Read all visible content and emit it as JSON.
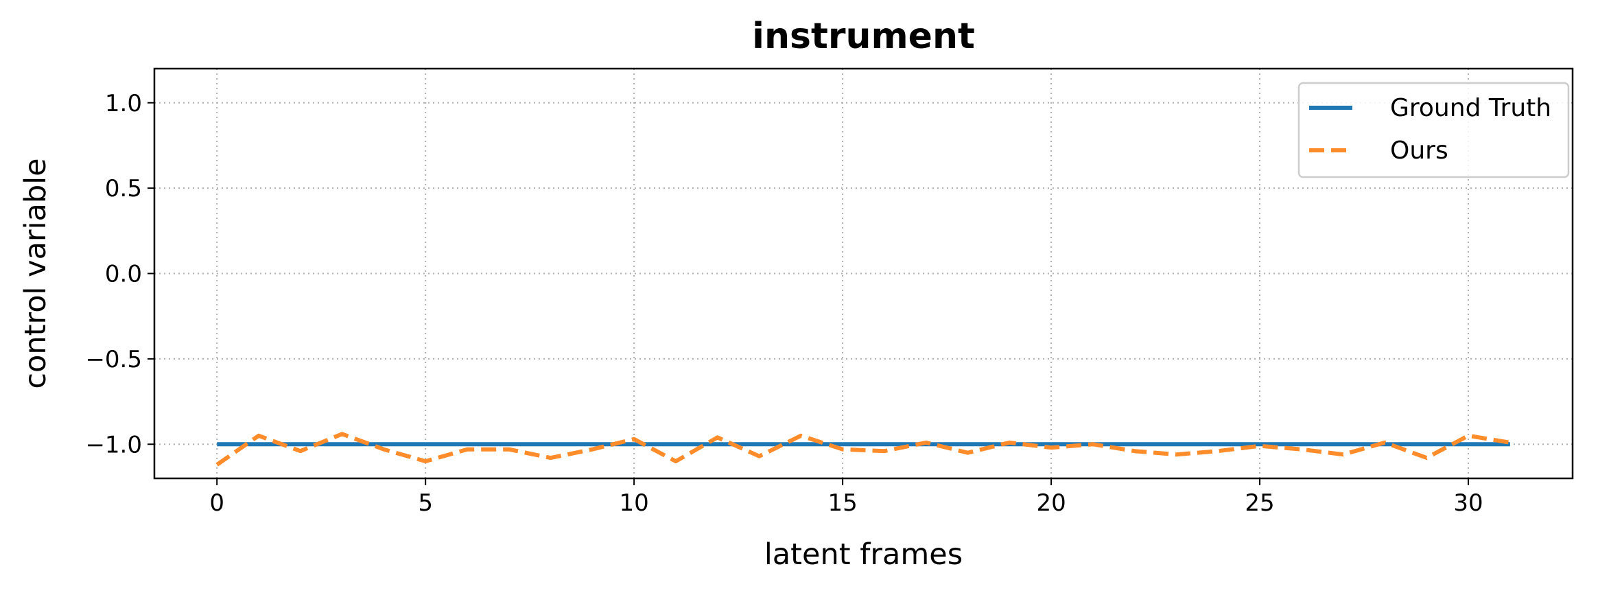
{
  "chart_data": {
    "type": "line",
    "title": "instrument",
    "xlabel": "latent frames",
    "ylabel": "control variable",
    "xlim": [
      -1.5,
      32.5
    ],
    "ylim": [
      -1.2,
      1.2
    ],
    "xticks": [
      0,
      5,
      10,
      15,
      20,
      25,
      30
    ],
    "yticks": [
      1.0,
      0.5,
      0.0,
      -0.5,
      -1.0
    ],
    "xtick_labels": [
      "0",
      "5",
      "10",
      "15",
      "20",
      "25",
      "30"
    ],
    "ytick_labels": [
      "1.0",
      "0.5",
      "0.0",
      "−0.5",
      "−1.0"
    ],
    "grid": true,
    "legend_position": "top-right",
    "series": [
      {
        "name": "Ground Truth",
        "color": "#1f77b4",
        "style": "solid",
        "x": [
          0,
          1,
          2,
          3,
          4,
          5,
          6,
          7,
          8,
          9,
          10,
          11,
          12,
          13,
          14,
          15,
          16,
          17,
          18,
          19,
          20,
          21,
          22,
          23,
          24,
          25,
          26,
          27,
          28,
          29,
          30,
          31
        ],
        "values": [
          -1.0,
          -1.0,
          -1.0,
          -1.0,
          -1.0,
          -1.0,
          -1.0,
          -1.0,
          -1.0,
          -1.0,
          -1.0,
          -1.0,
          -1.0,
          -1.0,
          -1.0,
          -1.0,
          -1.0,
          -1.0,
          -1.0,
          -1.0,
          -1.0,
          -1.0,
          -1.0,
          -1.0,
          -1.0,
          -1.0,
          -1.0,
          -1.0,
          -1.0,
          -1.0,
          -1.0,
          -1.0
        ]
      },
      {
        "name": "Ours",
        "color": "#ff8c2a",
        "style": "dashed",
        "x": [
          0,
          1,
          2,
          3,
          4,
          5,
          6,
          7,
          8,
          9,
          10,
          11,
          12,
          13,
          14,
          15,
          16,
          17,
          18,
          19,
          20,
          21,
          22,
          23,
          24,
          25,
          26,
          27,
          28,
          29,
          30,
          31
        ],
        "values": [
          -1.12,
          -0.95,
          -1.04,
          -0.94,
          -1.03,
          -1.1,
          -1.03,
          -1.03,
          -1.08,
          -1.03,
          -0.97,
          -1.1,
          -0.96,
          -1.07,
          -0.95,
          -1.03,
          -1.04,
          -0.99,
          -1.05,
          -0.99,
          -1.02,
          -1.0,
          -1.04,
          -1.06,
          -1.04,
          -1.01,
          -1.03,
          -1.06,
          -0.99,
          -1.08,
          -0.95,
          -0.99
        ]
      }
    ]
  }
}
